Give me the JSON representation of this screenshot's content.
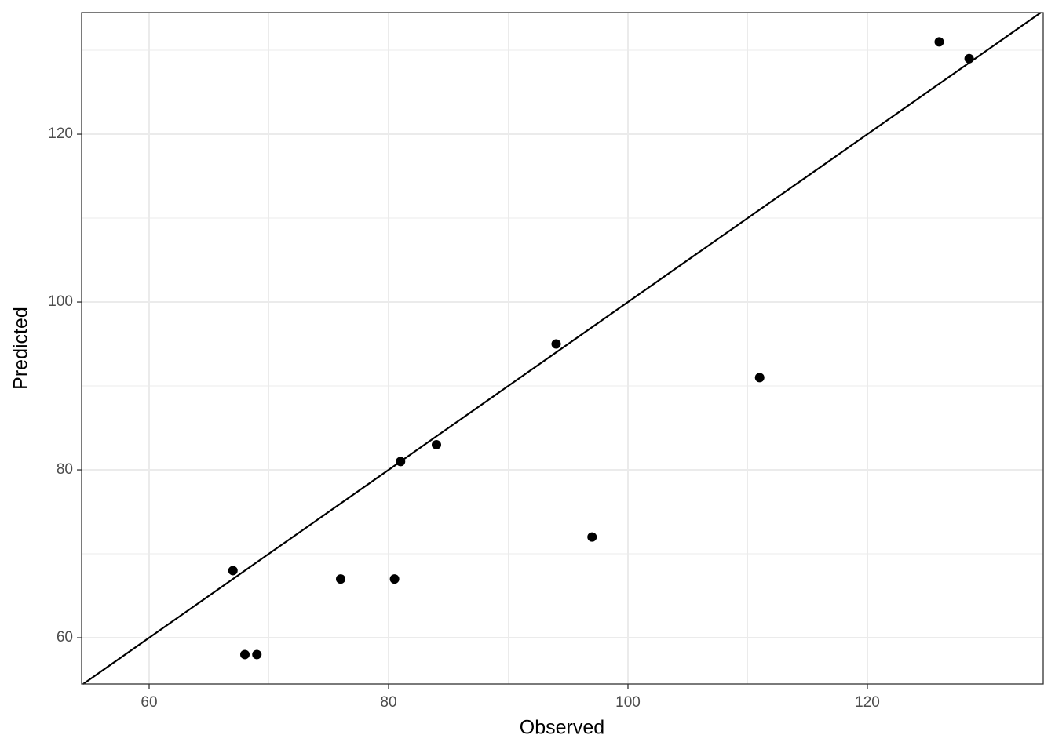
{
  "chart_data": {
    "type": "scatter",
    "x_label": "Observed",
    "y_label": "Predicted",
    "series": [
      {
        "color": "#000000",
        "x": [
          67,
          68,
          69,
          76,
          80.5,
          81,
          84,
          94,
          97,
          111,
          126,
          128.5
        ],
        "values": [
          68,
          58,
          58,
          67,
          67,
          81,
          83,
          95,
          72,
          91,
          131,
          129
        ]
      }
    ],
    "xlim": [
      54.36,
      134.69
    ],
    "ylim": [
      54.49,
      134.49
    ],
    "xticks": [
      60,
      80,
      100,
      120
    ],
    "yticks": [
      60,
      80,
      100,
      120
    ],
    "grid": true
  }
}
